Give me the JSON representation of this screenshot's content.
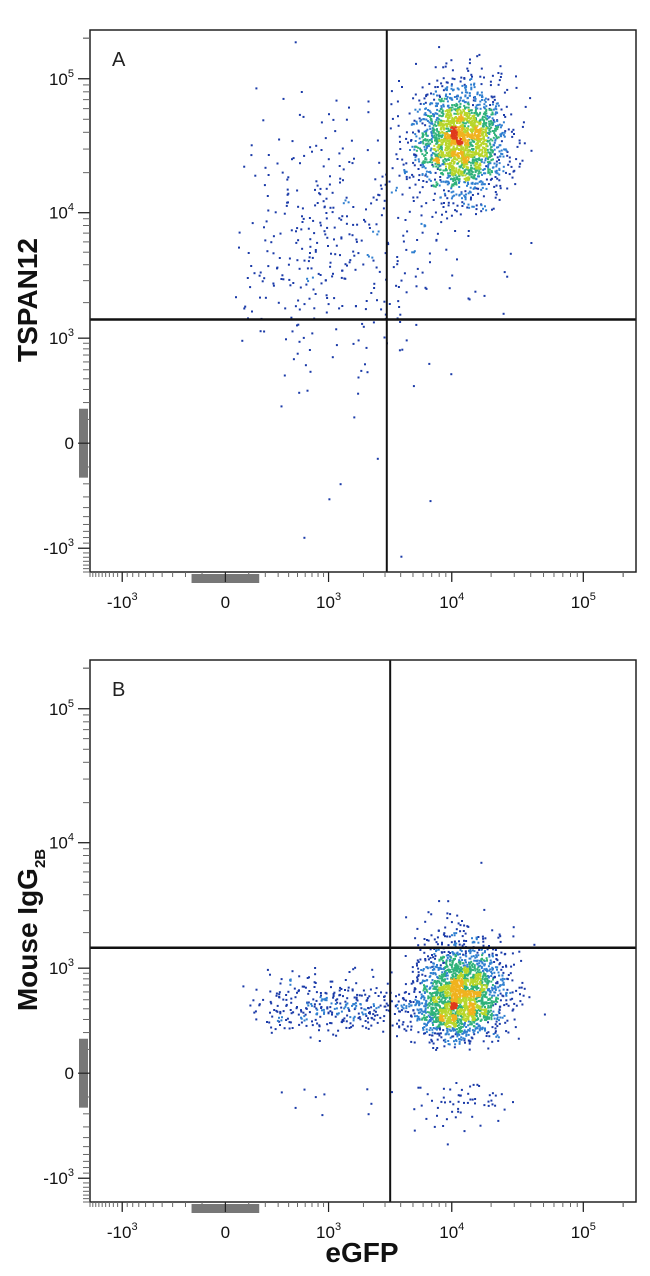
{
  "chart_data": [
    {
      "type": "scatter",
      "panel": "A",
      "xlabel": "",
      "ylabel": "TSPAN12",
      "x_scale": "biexponential",
      "y_scale": "biexponential",
      "x_ticks": [
        {
          "base": "-10",
          "exp": "3",
          "value": -1000
        },
        {
          "base": "0",
          "exp": "",
          "value": 0
        },
        {
          "base": "10",
          "exp": "3",
          "value": 1000
        },
        {
          "base": "10",
          "exp": "4",
          "value": 10000
        },
        {
          "base": "10",
          "exp": "5",
          "value": 100000
        }
      ],
      "y_ticks": [
        {
          "base": "-10",
          "exp": "3",
          "value": -1000
        },
        {
          "base": "0",
          "exp": "",
          "value": 0
        },
        {
          "base": "10",
          "exp": "3",
          "value": 1000
        },
        {
          "base": "10",
          "exp": "4",
          "value": 10000
        },
        {
          "base": "10",
          "exp": "5",
          "value": 100000
        }
      ],
      "xlim": [
        -1900,
        250000
      ],
      "ylim": [
        -1600,
        230000
      ],
      "quadrant_gate": {
        "x": 3100,
        "y": 1450
      },
      "populations": [
        {
          "x_center": 11500,
          "y_center": 35000,
          "x_spread_decades": 0.17,
          "y_spread_decades": 0.2,
          "share": 0.83
        },
        {
          "x_center": 1300,
          "y_center": 6000,
          "x_spread_decades": 0.5,
          "y_spread_decades": 0.5,
          "share": 0.17
        }
      ],
      "colormap": [
        "#1a3aa8",
        "#2f7fd0",
        "#2fb27a",
        "#b8d62b",
        "#f0b21e",
        "#e03a1c"
      ],
      "grid": false,
      "legend": "none"
    },
    {
      "type": "scatter",
      "panel": "B",
      "xlabel": "eGFP",
      "ylabel": "Mouse IgG",
      "ylabel_sub": "2B",
      "x_scale": "biexponential",
      "y_scale": "biexponential",
      "x_ticks": [
        {
          "base": "-10",
          "exp": "3",
          "value": -1000
        },
        {
          "base": "0",
          "exp": "",
          "value": 0
        },
        {
          "base": "10",
          "exp": "3",
          "value": 1000
        },
        {
          "base": "10",
          "exp": "4",
          "value": 10000
        },
        {
          "base": "10",
          "exp": "5",
          "value": 100000
        }
      ],
      "y_ticks": [
        {
          "base": "-10",
          "exp": "3",
          "value": -1000
        },
        {
          "base": "0",
          "exp": "",
          "value": 0
        },
        {
          "base": "10",
          "exp": "3",
          "value": 1000
        },
        {
          "base": "10",
          "exp": "4",
          "value": 10000
        },
        {
          "base": "10",
          "exp": "5",
          "value": 100000
        }
      ],
      "xlim": [
        -1900,
        250000
      ],
      "ylim": [
        -1600,
        230000
      ],
      "quadrant_gate": {
        "x": 3300,
        "y": 1500
      },
      "populations": [
        {
          "x_center": 11500,
          "y_center": 560,
          "x_spread_decades": 0.17,
          "y_spread_decades": 0.25,
          "share": 0.86
        },
        {
          "x_center": 1200,
          "y_center": 430,
          "x_spread_decades": 0.45,
          "y_spread_decades": 0.16,
          "share": 0.14
        }
      ],
      "colormap": [
        "#1a3aa8",
        "#2f7fd0",
        "#2fb27a",
        "#b8d62b",
        "#f0b21e",
        "#e03a1c"
      ],
      "grid": false,
      "legend": "none"
    }
  ]
}
